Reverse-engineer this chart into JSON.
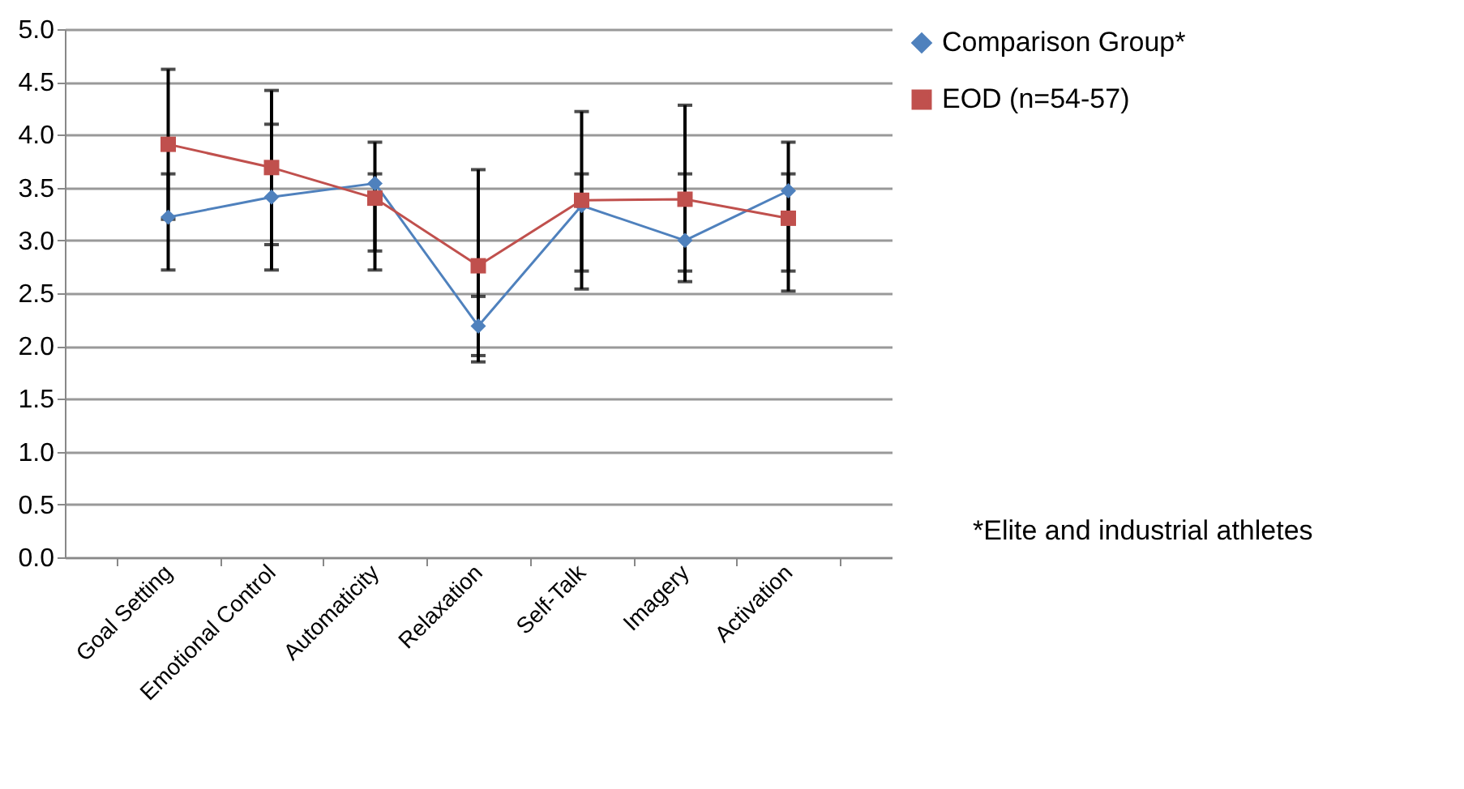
{
  "chart_data": {
    "type": "line",
    "categories": [
      "Goal Setting",
      "Emotional Control",
      "Automaticity",
      "Relaxation",
      "Self-Talk",
      "Imagery",
      "Activation"
    ],
    "series": [
      {
        "name": "Comparison Group*",
        "color": "#4f81bd",
        "marker": "diamond",
        "values": [
          3.22,
          3.41,
          3.54,
          2.19,
          3.33,
          3.0,
          3.47
        ],
        "errors": [
          [
            2.72,
            3.63
          ],
          [
            2.72,
            4.1
          ],
          [
            2.72,
            3.63
          ],
          [
            1.91,
            2.47
          ],
          [
            2.71,
            3.63
          ],
          [
            2.71,
            3.63
          ],
          [
            2.71,
            3.63
          ]
        ]
      },
      {
        "name": "EOD (n=54-57)",
        "color": "#c0504d",
        "marker": "square",
        "values": [
          3.91,
          3.69,
          3.4,
          2.76,
          3.38,
          3.39,
          3.21
        ],
        "errors": [
          [
            3.2,
            4.62
          ],
          [
            2.96,
            4.42
          ],
          [
            2.9,
            3.93
          ],
          [
            1.85,
            3.67
          ],
          [
            2.54,
            4.22
          ],
          [
            2.61,
            4.28
          ],
          [
            2.52,
            3.93
          ]
        ]
      }
    ],
    "ylim": [
      0,
      5
    ],
    "yticks": [
      {
        "value": 0,
        "label": "0.0"
      },
      0.5,
      {
        "value": 1,
        "label": "1.0"
      },
      1.5,
      {
        "value": 2,
        "label": "2.0"
      },
      2.5,
      {
        "value": 3,
        "label": "3.0"
      },
      3.5,
      {
        "value": 4,
        "label": "4.0"
      },
      4.5,
      {
        "value": 5,
        "label": "5.0"
      }
    ],
    "grid": "y",
    "legend": "right",
    "annotations": [
      "*Elite and industrial athletes"
    ]
  }
}
